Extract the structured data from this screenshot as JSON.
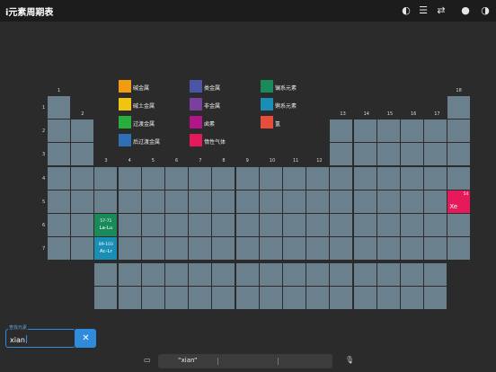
{
  "app": {
    "title": "i元素周期表"
  },
  "toolbar": {
    "icons": [
      "palette-icon",
      "list-icon",
      "translate-icon",
      "drop-icon",
      "contrast-icon"
    ]
  },
  "groups": [
    "1",
    "2",
    "3",
    "4",
    "5",
    "6",
    "7",
    "8",
    "9",
    "10",
    "11",
    "12",
    "13",
    "14",
    "15",
    "16",
    "17",
    "18"
  ],
  "periods": [
    "1",
    "2",
    "3",
    "4",
    "5",
    "6",
    "7"
  ],
  "legend": [
    {
      "label": "碱金属",
      "color": "#f39c12"
    },
    {
      "label": "碱土金属",
      "color": "#f1c40f"
    },
    {
      "label": "过渡金属",
      "color": "#27ae3c"
    },
    {
      "label": "后过渡金属",
      "color": "#2e6fb8"
    },
    {
      "label": "类金属",
      "color": "#4a55a8"
    },
    {
      "label": "非金属",
      "color": "#7b3fa0"
    },
    {
      "label": "卤素",
      "color": "#b0168a"
    },
    {
      "label": "惰性气体",
      "color": "#e6195a"
    },
    {
      "label": "镧系元素",
      "color": "#1b8a5a"
    },
    {
      "label": "锕系元素",
      "color": "#1a8eb4"
    },
    {
      "label": "氢",
      "color": "#e74c3c"
    }
  ],
  "highlight": {
    "number": "54",
    "symbol": "Xe"
  },
  "lanthanide_placeholder": {
    "range": "57-71",
    "symbol": "La-Lu"
  },
  "actinide_placeholder": {
    "range": "89-103",
    "symbol": "Ac-Lr"
  },
  "search": {
    "label": "查找元素",
    "value": "xian"
  },
  "keyboard": {
    "suggestion": "“xian”"
  }
}
